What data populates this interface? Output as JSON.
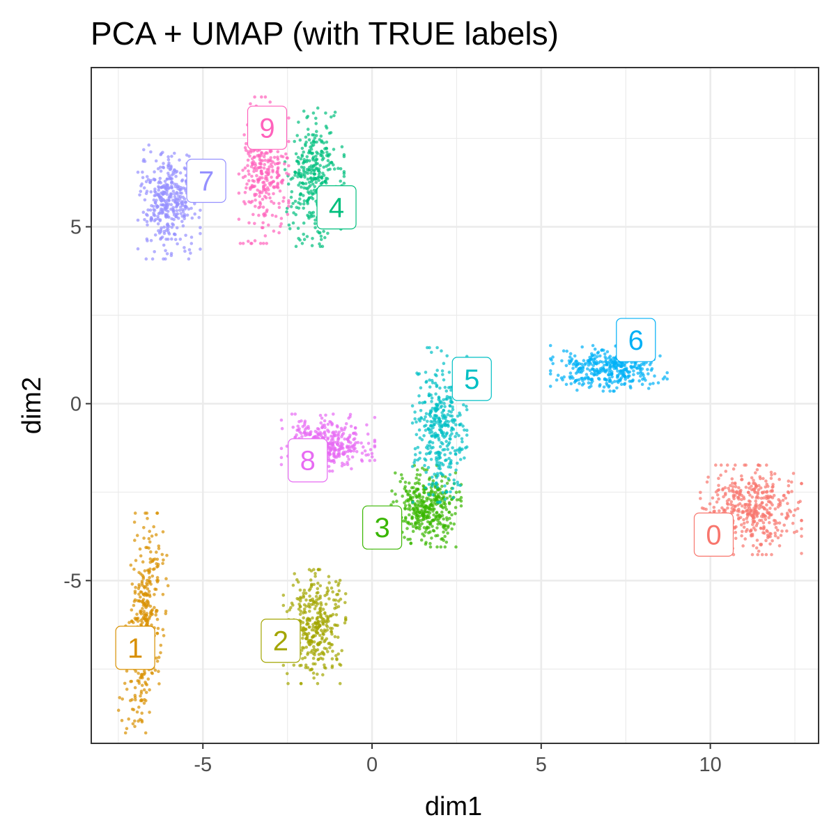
{
  "chart_data": {
    "type": "scatter",
    "title": "PCA + UMAP (with TRUE labels)",
    "xlabel": "dim1",
    "ylabel": "dim2",
    "xlim": [
      -8.3,
      13.2
    ],
    "ylim": [
      -9.6,
      9.5
    ],
    "xticks": [
      -5,
      0,
      5,
      10
    ],
    "xtick_labels": [
      "-5",
      "0",
      "5",
      "10"
    ],
    "yticks": [
      -5,
      0,
      5
    ],
    "ytick_labels": [
      "-5",
      "0",
      "5"
    ],
    "grid": true,
    "legend": "none",
    "clusters": [
      {
        "label": "0",
        "color": "#F8766D",
        "center": [
          11.2,
          -3.0
        ],
        "spread": [
          0.65,
          0.55
        ],
        "n": 420,
        "label_pos": [
          10.1,
          -3.7
        ]
      },
      {
        "label": "1",
        "color": "#D89000",
        "center": [
          -6.7,
          -6.2
        ],
        "spread": [
          0.25,
          1.35
        ],
        "n": 380,
        "label_pos": [
          -7.0,
          -6.9
        ],
        "elongated": true
      },
      {
        "label": "2",
        "color": "#A3A500",
        "center": [
          -1.7,
          -6.3
        ],
        "spread": [
          0.4,
          0.7
        ],
        "n": 360,
        "label_pos": [
          -2.7,
          -6.7
        ]
      },
      {
        "label": "3",
        "color": "#39B600",
        "center": [
          1.6,
          -2.9
        ],
        "spread": [
          0.45,
          0.5
        ],
        "n": 380,
        "label_pos": [
          0.3,
          -3.5
        ]
      },
      {
        "label": "4",
        "color": "#00BF7D",
        "center": [
          -1.7,
          6.4
        ],
        "spread": [
          0.38,
          0.85
        ],
        "n": 360,
        "label_pos": [
          -1.05,
          5.55
        ]
      },
      {
        "label": "5",
        "color": "#00BFC4",
        "center": [
          2.0,
          -0.6
        ],
        "spread": [
          0.35,
          0.95
        ],
        "n": 360,
        "label_pos": [
          2.95,
          0.7
        ]
      },
      {
        "label": "6",
        "color": "#00B0F6",
        "center": [
          7.0,
          1.0
        ],
        "spread": [
          0.75,
          0.28
        ],
        "n": 380,
        "label_pos": [
          7.8,
          1.8
        ]
      },
      {
        "label": "7",
        "color": "#9590FF",
        "center": [
          -6.0,
          5.7
        ],
        "spread": [
          0.4,
          0.7
        ],
        "n": 380,
        "label_pos": [
          -4.9,
          6.3
        ]
      },
      {
        "label": "8",
        "color": "#E76BF3",
        "center": [
          -1.3,
          -1.1
        ],
        "spread": [
          0.6,
          0.35
        ],
        "n": 360,
        "label_pos": [
          -1.9,
          -1.6
        ]
      },
      {
        "label": "9",
        "color": "#FF62BC",
        "center": [
          -3.2,
          6.6
        ],
        "spread": [
          0.32,
          0.9
        ],
        "n": 320,
        "label_pos": [
          -3.1,
          7.8
        ]
      }
    ]
  }
}
